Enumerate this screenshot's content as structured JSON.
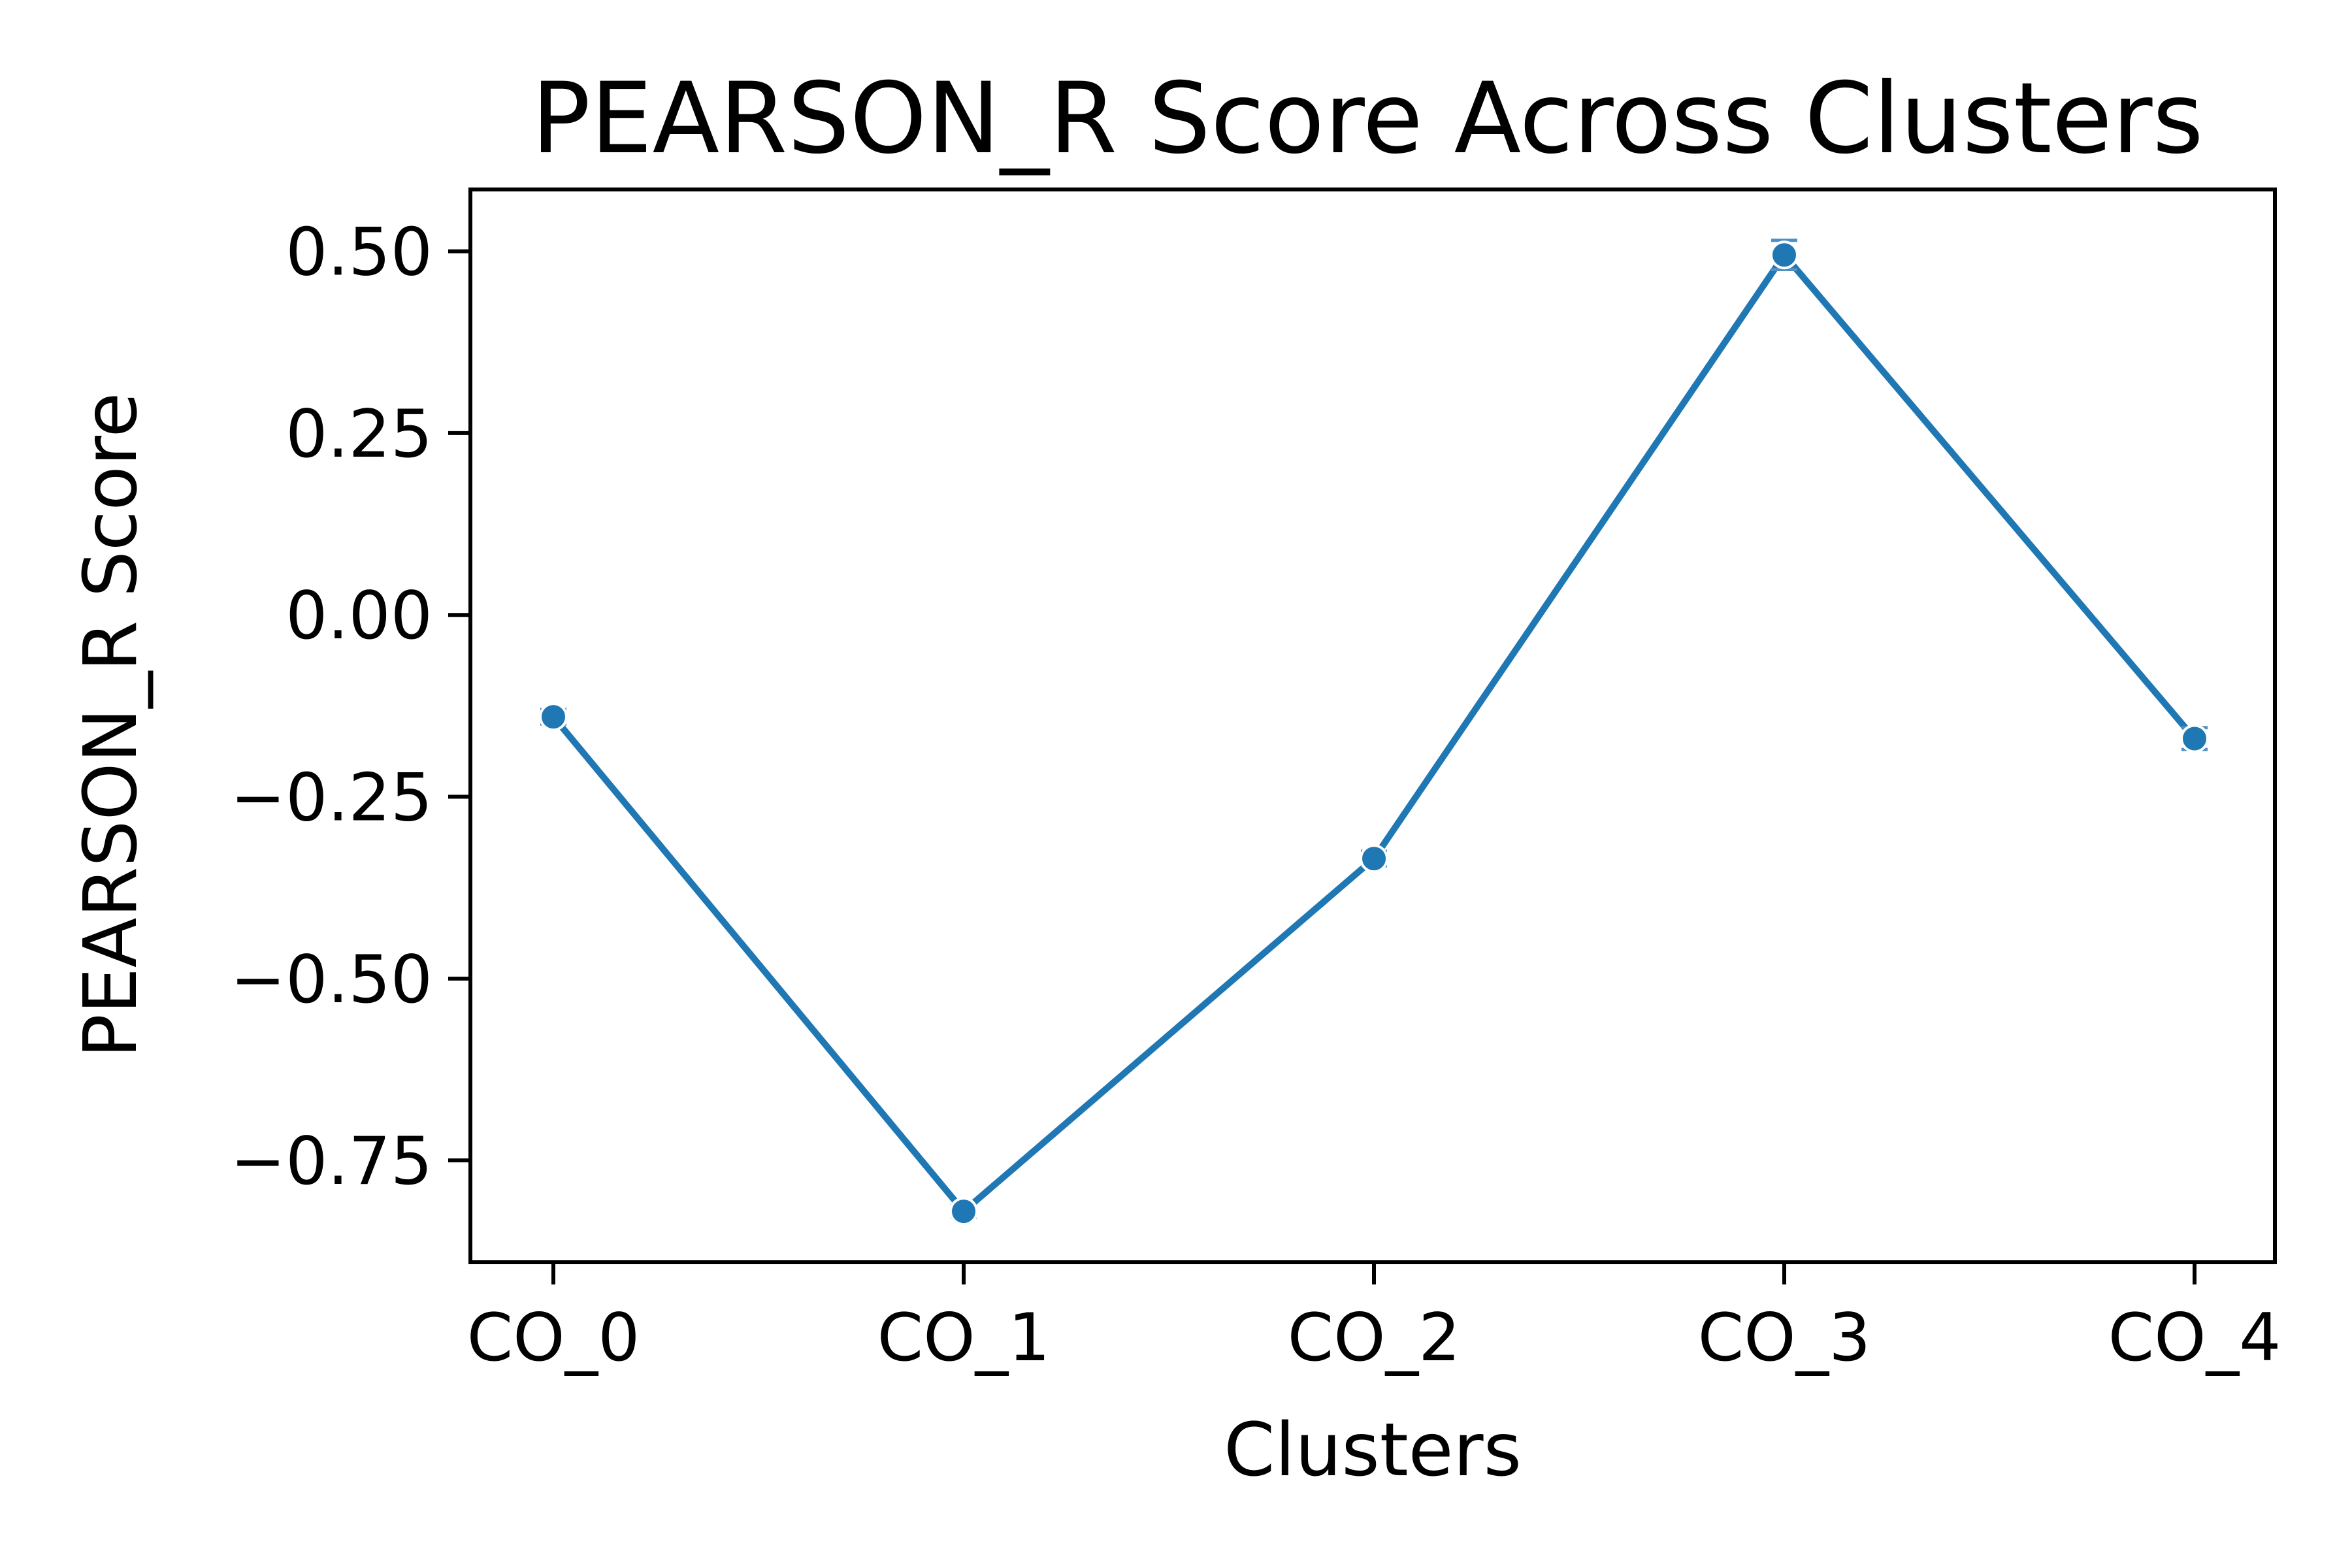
{
  "chart_data": {
    "type": "line",
    "title": "PEARSON_R Score Across Clusters",
    "xlabel": "Clusters",
    "ylabel": "PEARSON_R Score",
    "categories": [
      "CO_0",
      "CO_1",
      "CO_2",
      "CO_3",
      "CO_4"
    ],
    "series": [
      {
        "values": [
          -0.14,
          -0.82,
          -0.335,
          0.495,
          -0.17
        ],
        "errors": [
          0.01,
          0.008,
          0.01,
          0.02,
          0.015
        ]
      }
    ],
    "ylim": [
      -0.89,
      0.585
    ],
    "yticks": [
      0.5,
      0.25,
      0.0,
      -0.25,
      -0.5,
      -0.75
    ],
    "ytick_labels": [
      "0.50",
      "0.25",
      "0.00",
      "−0.25",
      "−0.50",
      "−0.75"
    ],
    "grid": false,
    "legend": "none",
    "color": "#1f77b4"
  }
}
